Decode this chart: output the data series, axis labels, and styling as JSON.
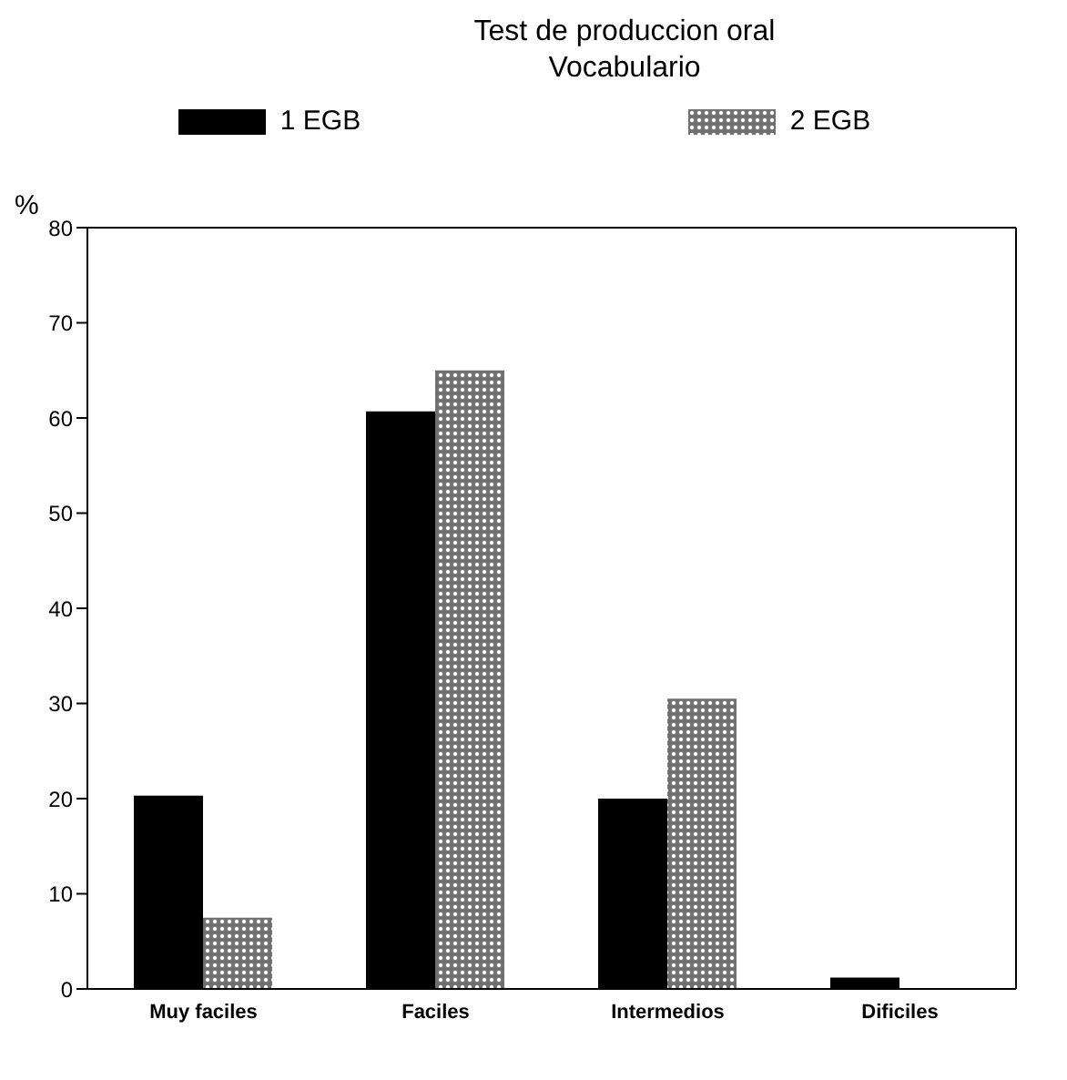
{
  "chart_data": {
    "type": "bar",
    "title": "Test de produccion oral",
    "subtitle": "Vocabulario",
    "ylabel": "%",
    "categories": [
      "Muy faciles",
      "Faciles",
      "Intermedios",
      "Dificiles"
    ],
    "series": [
      {
        "name": "1 EGB",
        "color": "#000000",
        "values": [
          20.3,
          60.7,
          20,
          1.2
        ]
      },
      {
        "name": "2 EGB",
        "color": "#707070",
        "values": [
          7.5,
          65,
          30.5,
          0
        ]
      }
    ],
    "ylim": [
      0,
      80
    ],
    "yticks": [
      0,
      10,
      20,
      30,
      40,
      50,
      60,
      70,
      80
    ],
    "legend": "top"
  }
}
